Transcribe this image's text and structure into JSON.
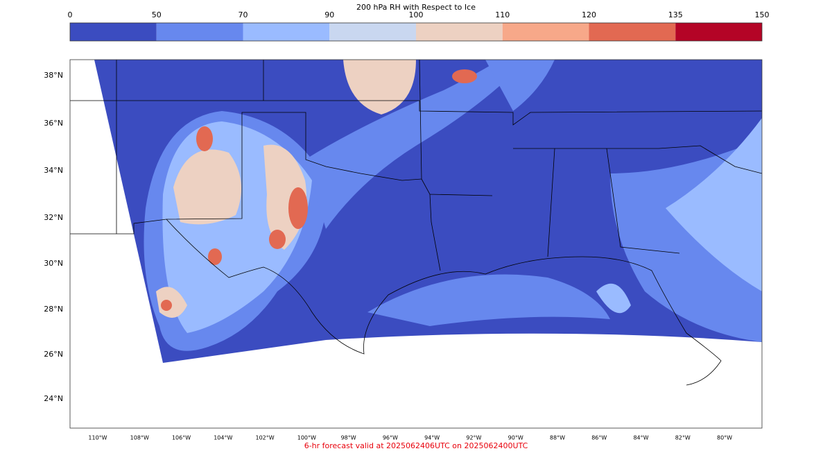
{
  "colorbar": {
    "title": "200 hPa RH with Respect to Ice",
    "ticks": [
      0,
      50,
      70,
      90,
      100,
      110,
      120,
      135,
      150
    ],
    "colors": [
      "#3b4cc0",
      "#6788ee",
      "#9abbff",
      "#c9d7f0",
      "#edd1c2",
      "#f7a889",
      "#e26952",
      "#b40426"
    ]
  },
  "map": {
    "lat_labels": [
      "38°N",
      "36°N",
      "34°N",
      "32°N",
      "30°N",
      "28°N",
      "26°N",
      "24°N"
    ],
    "lon_labels": [
      "110°W",
      "108°W",
      "106°W",
      "104°W",
      "102°W",
      "100°W",
      "98°W",
      "96°W",
      "94°W",
      "92°W",
      "90°W",
      "88°W",
      "86°W",
      "84°W",
      "82°W",
      "80°W"
    ]
  },
  "footer": "6-hr forecast valid at 2025062406UTC on 2025062400UTC"
}
